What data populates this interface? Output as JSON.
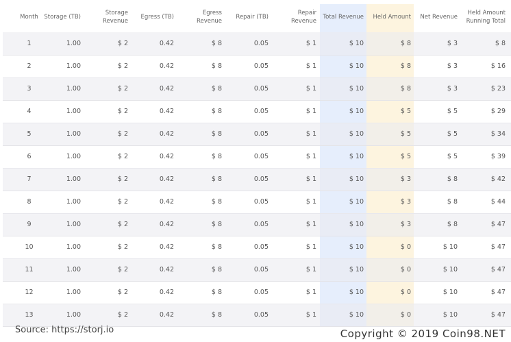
{
  "table": {
    "header": [
      "Month",
      "Storage (TB)",
      "Storage Revenue",
      "Egress (TB)",
      "Egress Revenue",
      "Repair (TB)",
      "Repair Revenue",
      "Total Revenue",
      "Held Amount",
      "Net Revenue",
      "Held Amount Running Total"
    ],
    "rows": [
      [
        "1",
        "1.00",
        "$ 2",
        "0.42",
        "$ 8",
        "0.05",
        "$ 1",
        "$ 10",
        "$ 8",
        "$ 3",
        "$ 8"
      ],
      [
        "2",
        "1.00",
        "$ 2",
        "0.42",
        "$ 8",
        "0.05",
        "$ 1",
        "$ 10",
        "$ 8",
        "$ 3",
        "$ 16"
      ],
      [
        "3",
        "1.00",
        "$ 2",
        "0.42",
        "$ 8",
        "0.05",
        "$ 1",
        "$ 10",
        "$ 8",
        "$ 3",
        "$ 23"
      ],
      [
        "4",
        "1.00",
        "$ 2",
        "0.42",
        "$ 8",
        "0.05",
        "$ 1",
        "$ 10",
        "$ 5",
        "$ 5",
        "$ 29"
      ],
      [
        "5",
        "1.00",
        "$ 2",
        "0.42",
        "$ 8",
        "0.05",
        "$ 1",
        "$ 10",
        "$ 5",
        "$ 5",
        "$ 34"
      ],
      [
        "6",
        "1.00",
        "$ 2",
        "0.42",
        "$ 8",
        "0.05",
        "$ 1",
        "$ 10",
        "$ 5",
        "$ 5",
        "$ 39"
      ],
      [
        "7",
        "1.00",
        "$ 2",
        "0.42",
        "$ 8",
        "0.05",
        "$ 1",
        "$ 10",
        "$ 3",
        "$ 8",
        "$ 42"
      ],
      [
        "8",
        "1.00",
        "$ 2",
        "0.42",
        "$ 8",
        "0.05",
        "$ 1",
        "$ 10",
        "$ 3",
        "$ 8",
        "$ 44"
      ],
      [
        "9",
        "1.00",
        "$ 2",
        "0.42",
        "$ 8",
        "0.05",
        "$ 1",
        "$ 10",
        "$ 3",
        "$ 8",
        "$ 47"
      ],
      [
        "10",
        "1.00",
        "$ 2",
        "0.42",
        "$ 8",
        "0.05",
        "$ 1",
        "$ 10",
        "$ 0",
        "$ 10",
        "$ 47"
      ],
      [
        "11",
        "1.00",
        "$ 2",
        "0.42",
        "$ 8",
        "0.05",
        "$ 1",
        "$ 10",
        "$ 0",
        "$ 10",
        "$ 47"
      ],
      [
        "12",
        "1.00",
        "$ 2",
        "0.42",
        "$ 8",
        "0.05",
        "$ 1",
        "$ 10",
        "$ 0",
        "$ 10",
        "$ 47"
      ],
      [
        "13",
        "1.00",
        "$ 2",
        "0.42",
        "$ 8",
        "0.05",
        "$ 1",
        "$ 10",
        "$ 0",
        "$ 10",
        "$ 47"
      ]
    ]
  },
  "footer": {
    "source": "Source: https://storj.io",
    "copyright": "Copyright © 2019 Coin98.NET"
  }
}
